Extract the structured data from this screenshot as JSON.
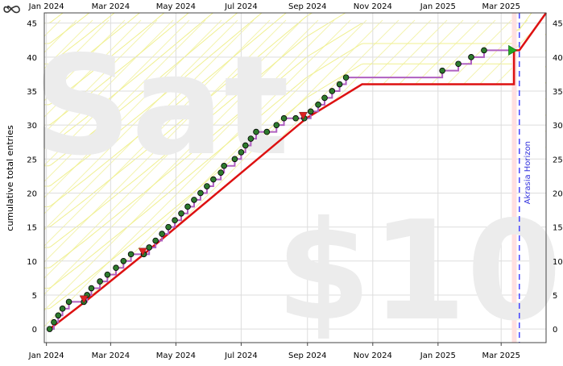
{
  "colors": {
    "road": "#dd1111",
    "data_line": "#b060c0",
    "data_point": "#2d7a2d",
    "derail": "#dd2222",
    "future_point": "#22aa22",
    "grid": "#dddddd",
    "yellow_guide": "#f0f090",
    "hatch": "#f4f4b0",
    "horizon": "#4444ff",
    "today_band": "#ffe0e0",
    "watermark": "#ececec"
  },
  "watermark": {
    "top_text": "Sat",
    "bottom_text": "$10"
  },
  "icon": {
    "name": "infinity-loop-icon"
  },
  "chart_data": {
    "type": "line",
    "title": "",
    "xlabel": "",
    "ylabel": "cumulative total entries",
    "x_tick_labels": [
      "Jan 2024",
      "Mar 2024",
      "May 2024",
      "Jul 2024",
      "Sep 2024",
      "Nov 2024",
      "Jan 2025",
      "Mar 2025"
    ],
    "x_tick_dates": [
      "2024-01-01",
      "2024-03-01",
      "2024-05-01",
      "2024-07-01",
      "2024-09-01",
      "2024-11-01",
      "2025-01-01",
      "2025-03-01"
    ],
    "x_range": [
      "2023-12-30",
      "2025-04-12"
    ],
    "y_ticks": [
      0,
      5,
      10,
      15,
      20,
      25,
      30,
      35,
      40,
      45
    ],
    "ylim": [
      -2,
      46.5
    ],
    "grid": true,
    "horizon_label": "Akrasia Horizon",
    "horizon_date": "2025-03-18",
    "today_date": "2025-03-11",
    "road": [
      [
        "2024-01-04",
        0
      ],
      [
        "2024-02-06",
        4
      ],
      [
        "2024-04-01",
        11
      ],
      [
        "2024-08-31",
        31
      ],
      [
        "2024-10-22",
        36
      ],
      [
        "2025-03-13",
        36
      ],
      [
        "2025-03-13",
        41
      ],
      [
        "2025-03-18",
        41
      ],
      [
        "2025-04-12",
        46.5
      ]
    ],
    "datapoints": [
      [
        "2024-01-04",
        0
      ],
      [
        "2024-01-08",
        1
      ],
      [
        "2024-01-12",
        2
      ],
      [
        "2024-01-16",
        3
      ],
      [
        "2024-01-22",
        4
      ],
      [
        "2024-02-05",
        4
      ],
      [
        "2024-02-08",
        5
      ],
      [
        "2024-02-12",
        6
      ],
      [
        "2024-02-20",
        7
      ],
      [
        "2024-02-27",
        8
      ],
      [
        "2024-03-06",
        9
      ],
      [
        "2024-03-13",
        10
      ],
      [
        "2024-03-20",
        11
      ],
      [
        "2024-04-01",
        11
      ],
      [
        "2024-04-06",
        12
      ],
      [
        "2024-04-12",
        13
      ],
      [
        "2024-04-18",
        14
      ],
      [
        "2024-04-24",
        15
      ],
      [
        "2024-04-30",
        16
      ],
      [
        "2024-05-06",
        17
      ],
      [
        "2024-05-12",
        18
      ],
      [
        "2024-05-18",
        19
      ],
      [
        "2024-05-24",
        20
      ],
      [
        "2024-05-30",
        21
      ],
      [
        "2024-06-05",
        22
      ],
      [
        "2024-06-12",
        23
      ],
      [
        "2024-06-15",
        24
      ],
      [
        "2024-06-25",
        25
      ],
      [
        "2024-07-01",
        26
      ],
      [
        "2024-07-05",
        27
      ],
      [
        "2024-07-10",
        28
      ],
      [
        "2024-07-15",
        29
      ],
      [
        "2024-07-25",
        29
      ],
      [
        "2024-08-03",
        30
      ],
      [
        "2024-08-10",
        31
      ],
      [
        "2024-08-21",
        31
      ],
      [
        "2024-08-29",
        31
      ],
      [
        "2024-09-04",
        32
      ],
      [
        "2024-09-11",
        33
      ],
      [
        "2024-09-17",
        34
      ],
      [
        "2024-09-24",
        35
      ],
      [
        "2024-10-01",
        36
      ],
      [
        "2024-10-07",
        37
      ],
      [
        "2025-01-05",
        38
      ],
      [
        "2025-01-20",
        39
      ],
      [
        "2025-02-01",
        40
      ],
      [
        "2025-02-13",
        41
      ]
    ],
    "derailments": [
      [
        "2024-02-05",
        4.3
      ],
      [
        "2024-03-31",
        11.3
      ],
      [
        "2024-08-28",
        31.3
      ]
    ],
    "future_point": [
      "2025-03-11",
      41
    ]
  }
}
